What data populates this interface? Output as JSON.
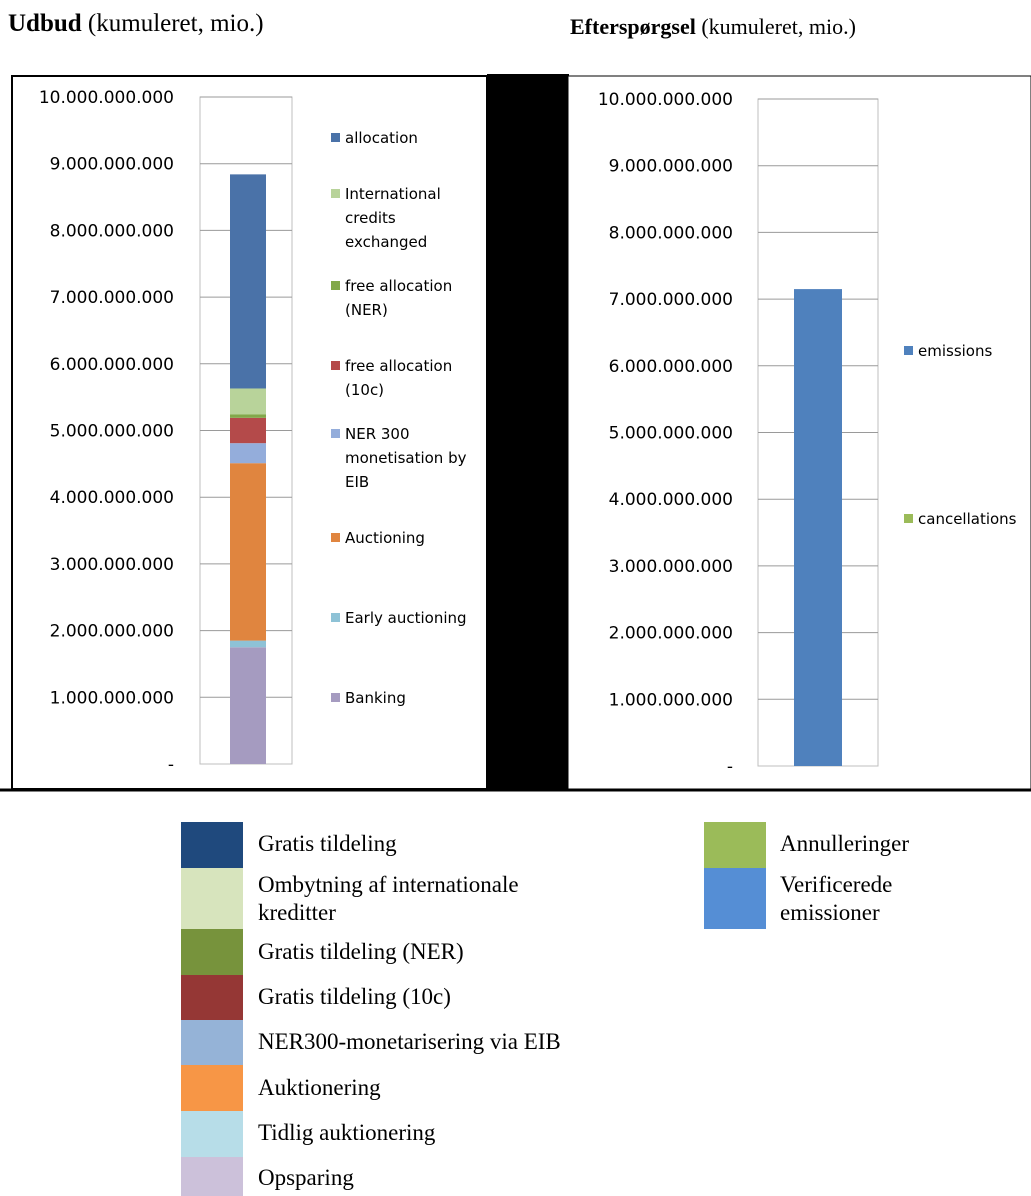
{
  "titles": {
    "left_bold": "Udbud",
    "left_rest": " (kumuleret, mio.)",
    "right_bold": "Efterspørgsel",
    "right_rest": " (kumuleret, mio.)"
  },
  "chart_data": [
    {
      "type": "bar",
      "stacked": true,
      "title": "Udbud (kumuleret, mio.)",
      "categories": [
        ""
      ],
      "ylim": [
        0,
        10000000000
      ],
      "y_tick_labels": [
        "-",
        "1.000.000.000",
        "2.000.000.000",
        "3.000.000.000",
        "4.000.000.000",
        "5.000.000.000",
        "6.000.000.000",
        "7.000.000.000",
        "8.000.000.000",
        "9.000.000.000",
        "10.000.000.000"
      ],
      "legend_position": "right",
      "grid": true,
      "series": [
        {
          "name": "Banking",
          "values": [
            1750000000
          ],
          "color": "#a59bc0"
        },
        {
          "name": "Early auctioning",
          "values": [
            100000000
          ],
          "color": "#8ec2d6"
        },
        {
          "name": "Auctioning",
          "values": [
            2660000000
          ],
          "color": "#e0853f"
        },
        {
          "name": "NER 300 monetisation by EIB",
          "values": [
            300000000
          ],
          "color": "#94addb"
        },
        {
          "name": "free allocation (10c)",
          "values": [
            380000000
          ],
          "color": "#b44a4a"
        },
        {
          "name": "free allocation (NER)",
          "values": [
            50000000
          ],
          "color": "#82a84a"
        },
        {
          "name": "International credits exchanged",
          "values": [
            390000000
          ],
          "color": "#b8d39a"
        },
        {
          "name": "allocation",
          "values": [
            3210000000
          ],
          "color": "#4a72a8"
        }
      ]
    },
    {
      "type": "bar",
      "stacked": true,
      "title": "Efterspørgsel (kumuleret, mio.)",
      "categories": [
        ""
      ],
      "ylim": [
        0,
        10000000000
      ],
      "y_tick_labels": [
        "-",
        "1.000.000.000",
        "2.000.000.000",
        "3.000.000.000",
        "4.000.000.000",
        "5.000.000.000",
        "6.000.000.000",
        "7.000.000.000",
        "8.000.000.000",
        "9.000.000.000",
        "10.000.000.000"
      ],
      "legend_position": "right",
      "grid": true,
      "series": [
        {
          "name": "emissions",
          "values": [
            7150000000
          ],
          "color": "#4f81bd"
        },
        {
          "name": "cancellations",
          "values": [
            0
          ],
          "color": "#9bbb59"
        }
      ]
    }
  ],
  "danish_legend": {
    "left": [
      {
        "label": "Gratis tildeling",
        "color": "#1f497d"
      },
      {
        "label": "Ombytning af internationale kreditter",
        "color": "#d7e4bd"
      },
      {
        "label": "Gratis tildeling (NER)",
        "color": "#77933c"
      },
      {
        "label": "Gratis tildeling (10c)",
        "color": "#953735"
      },
      {
        "label": "NER300-monetarisering via EIB",
        "color": "#95b3d7"
      },
      {
        "label": "Auktionering",
        "color": "#f79646"
      },
      {
        "label": "Tidlig auktionering",
        "color": "#b7dde8"
      },
      {
        "label": "Opsparing",
        "color": "#ccc1da"
      }
    ],
    "right": [
      {
        "label": "Annulleringer",
        "color": "#9bbb59"
      },
      {
        "label": "Verificerede emissioner",
        "color": "#558ed5"
      }
    ]
  }
}
